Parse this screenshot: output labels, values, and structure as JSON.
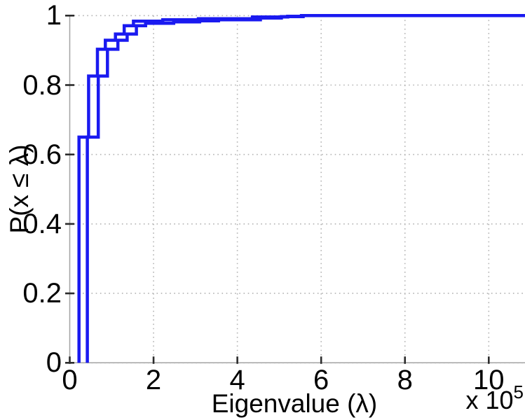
{
  "figure": {
    "background": "#ffffff"
  },
  "chart_data": {
    "type": "step",
    "subtype": "empirical-cdf",
    "title": "",
    "xlabel": "Eigenvalue (λ)",
    "ylabel": "P(x ≤ λ)",
    "x_scale_note": {
      "prefix": "x 10",
      "exponent": "5"
    },
    "x_units_multiplier": 100000,
    "xlim": [
      0,
      10.87
    ],
    "ylim": [
      0,
      1
    ],
    "x_ticks": [
      0,
      2,
      4,
      6,
      8,
      10
    ],
    "y_ticks": [
      0,
      0.2,
      0.4,
      0.6,
      0.8,
      1
    ],
    "x_tick_labels": [
      "0",
      "2",
      "4",
      "6",
      "8",
      "10"
    ],
    "y_tick_labels": [
      "0",
      "0.2",
      "0.4",
      "0.6",
      "0.8",
      "1"
    ],
    "grid": "dotted",
    "grid_color": "#b3b3b3",
    "axis_color": "#a3a3a3",
    "tick_color": "#2b2b2b",
    "line_color": "#1a1af0",
    "line_width": 4.5,
    "legend": null,
    "series": [
      {
        "name": "ecdf-curve-1",
        "jumps": [
          [
            0.22,
            0.65
          ],
          [
            0.45,
            0.826
          ],
          [
            0.66,
            0.903
          ],
          [
            0.85,
            0.929
          ],
          [
            1.09,
            0.947
          ],
          [
            1.3,
            0.971
          ],
          [
            1.52,
            0.984
          ],
          [
            2.22,
            0.988
          ],
          [
            3.07,
            0.991
          ],
          [
            4.36,
            0.996
          ],
          [
            5.2,
            0.998
          ],
          [
            5.53,
            1.0
          ]
        ]
      },
      {
        "name": "ecdf-curve-2",
        "jumps": [
          [
            0.42,
            0.65
          ],
          [
            0.68,
            0.826
          ],
          [
            0.9,
            0.903
          ],
          [
            1.15,
            0.929
          ],
          [
            1.37,
            0.947
          ],
          [
            1.59,
            0.971
          ],
          [
            1.81,
            0.978
          ],
          [
            2.48,
            0.982
          ],
          [
            3.1,
            0.985
          ],
          [
            3.55,
            0.988
          ],
          [
            4.55,
            0.993
          ],
          [
            5.05,
            0.997
          ],
          [
            5.57,
            1.0
          ]
        ]
      }
    ]
  }
}
